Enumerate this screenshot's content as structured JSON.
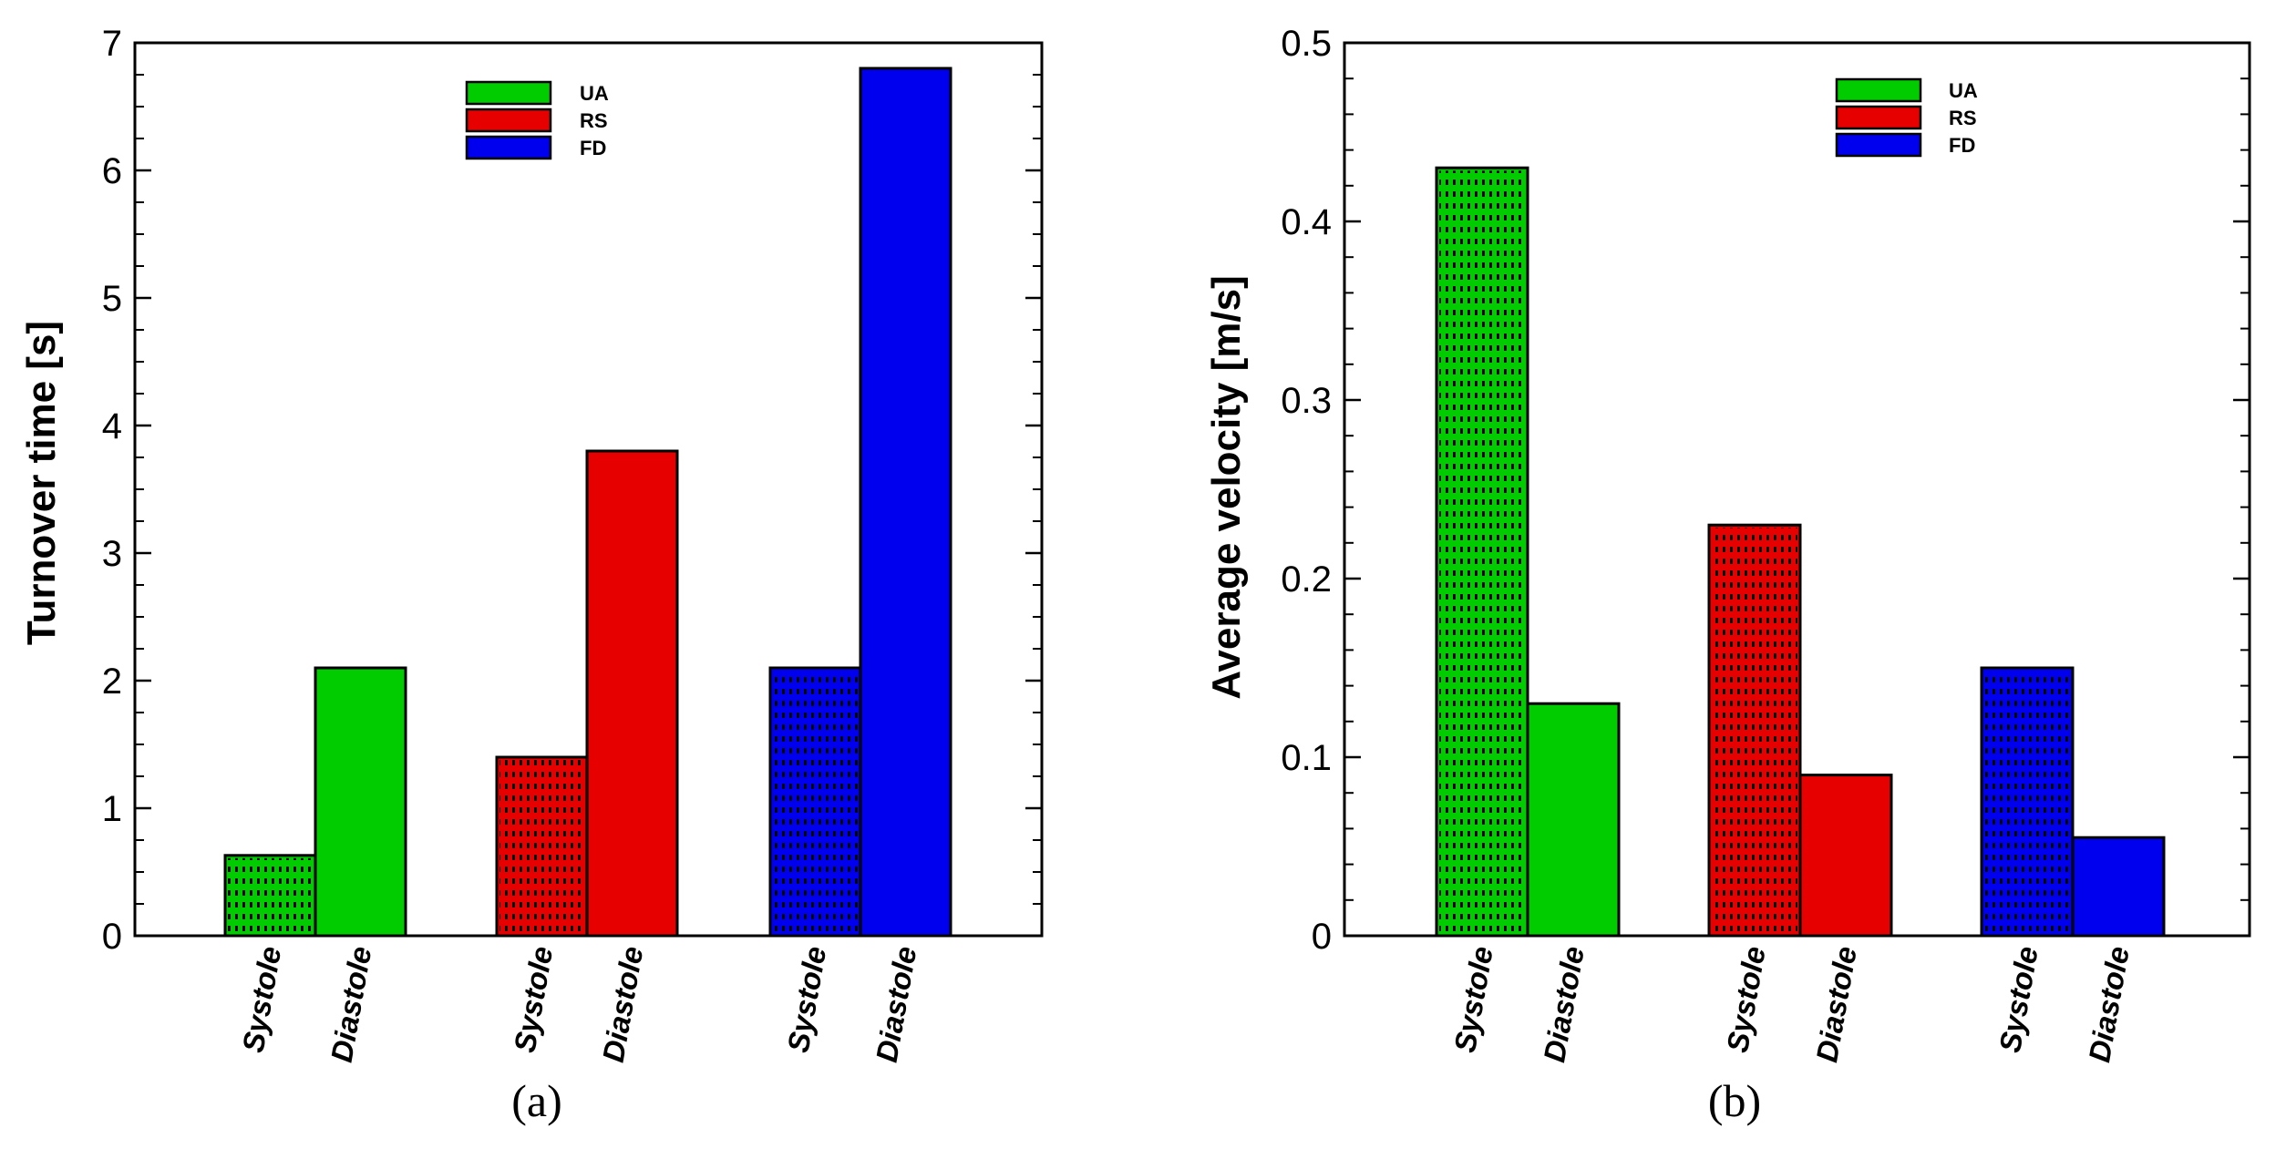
{
  "colors": {
    "UA": "#00cc00",
    "RS": "#e60000",
    "FD": "#0000ee"
  },
  "chart_data": [
    {
      "type": "bar",
      "panel_label": "(a)",
      "ylabel": "Turnover time [s]",
      "xlabel": "",
      "ylim": [
        0,
        7
      ],
      "yticks": [
        "0",
        "1",
        "2",
        "3",
        "4",
        "5",
        "6",
        "7"
      ],
      "categories": [
        "Systole",
        "Diastole"
      ],
      "legend": {
        "position": "top-center",
        "entries": [
          "UA",
          "RS",
          "FD"
        ]
      },
      "series": [
        {
          "name": "UA",
          "values": [
            0.63,
            2.1
          ]
        },
        {
          "name": "RS",
          "values": [
            1.4,
            3.8
          ]
        },
        {
          "name": "FD",
          "values": [
            2.1,
            6.8
          ]
        }
      ],
      "systole_pattern": "dotted"
    },
    {
      "type": "bar",
      "panel_label": "(b)",
      "ylabel": "Average velocity [m/s]",
      "xlabel": "",
      "ylim": [
        0,
        0.5
      ],
      "yticks": [
        "0",
        "0.1",
        "0.2",
        "0.3",
        "0.4",
        "0.5"
      ],
      "categories": [
        "Systole",
        "Diastole"
      ],
      "legend": {
        "position": "top-center",
        "entries": [
          "UA",
          "RS",
          "FD"
        ]
      },
      "series": [
        {
          "name": "UA",
          "values": [
            0.43,
            0.13
          ]
        },
        {
          "name": "RS",
          "values": [
            0.23,
            0.09
          ]
        },
        {
          "name": "FD",
          "values": [
            0.15,
            0.055
          ]
        }
      ],
      "systole_pattern": "dotted"
    }
  ]
}
